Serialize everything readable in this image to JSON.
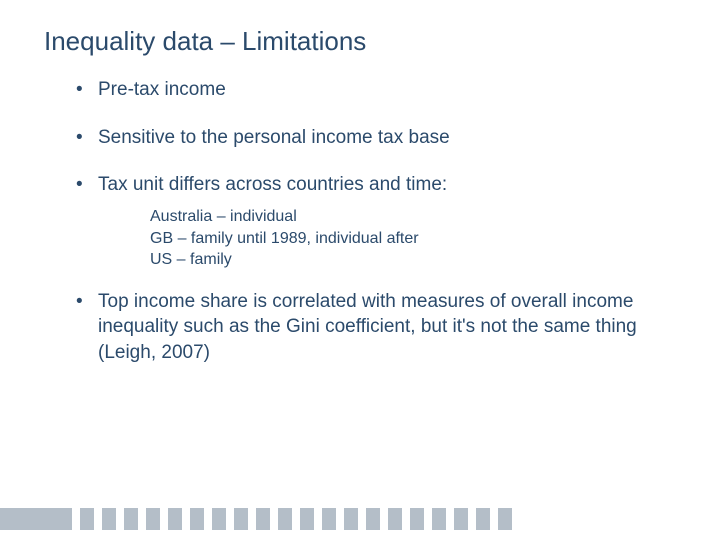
{
  "title": "Inequality data – Limitations",
  "text_color": "#2b4a6b",
  "background_color": "#ffffff",
  "title_fontsize": 26,
  "body_fontsize": 19,
  "sub_fontsize": 16,
  "bullets": {
    "b1": "Pre-tax income",
    "b2": "Sensitive to the personal income tax base",
    "b3": "Tax unit differs across countries and time:",
    "b4": "Top income share is correlated with measures of overall income inequality such as the Gini coefficient, but it's not the same thing (Leigh, 2007)"
  },
  "sub": {
    "s1": "Australia – individual",
    "s2": "GB – family until 1989, individual after",
    "s3": "US – family"
  },
  "footer": {
    "bar_color": "#b4bec8",
    "tick_count": 20
  }
}
